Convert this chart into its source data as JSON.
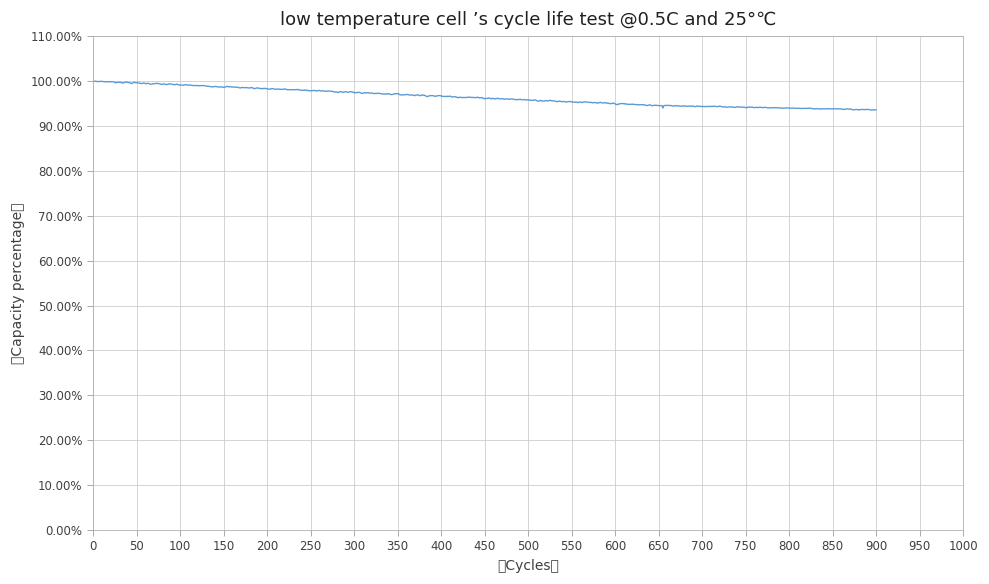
{
  "title": "low temperature cell ’s cycle life test @0.5C and 25°℃",
  "xlabel": "（Cycles）",
  "ylabel": "（Capacity percentage）",
  "line_color": "#5b9bd5",
  "line_width": 1.0,
  "background_color": "#ffffff",
  "grid_color": "#c8c8c8",
  "xlim": [
    0,
    1000
  ],
  "ylim": [
    0.0,
    1.1
  ],
  "xticks": [
    0,
    50,
    100,
    150,
    200,
    250,
    300,
    350,
    400,
    450,
    500,
    550,
    600,
    650,
    700,
    750,
    800,
    850,
    900,
    950,
    1000
  ],
  "yticks": [
    0.0,
    0.1,
    0.2,
    0.3,
    0.4,
    0.5,
    0.6,
    0.7,
    0.8,
    0.9,
    1.0,
    1.1
  ],
  "title_fontsize": 13,
  "axis_label_fontsize": 10,
  "tick_fontsize": 8.5,
  "axis_label_color": "#404040",
  "tick_color": "#404040",
  "title_color": "#202020",
  "curve_start": 1.0,
  "curve_end_pre_dip": 0.9455,
  "curve_end": 0.936,
  "dip_cycle": 655,
  "dip_min": 0.94,
  "total_cycles": 900
}
